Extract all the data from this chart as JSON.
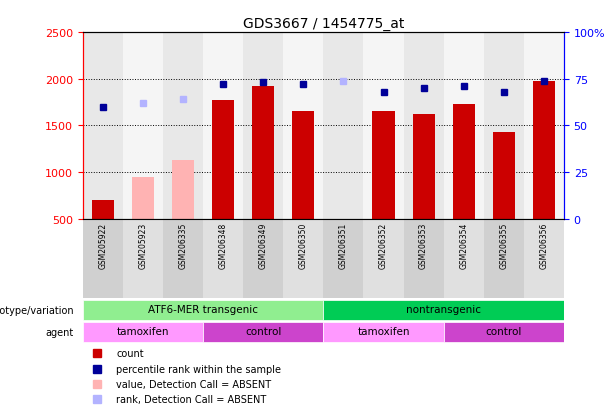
{
  "title": "GDS3667 / 1454775_at",
  "samples": [
    "GSM205922",
    "GSM205923",
    "GSM206335",
    "GSM206348",
    "GSM206349",
    "GSM206350",
    "GSM206351",
    "GSM206352",
    "GSM206353",
    "GSM206354",
    "GSM206355",
    "GSM206356"
  ],
  "count_values": [
    700,
    null,
    null,
    1775,
    1925,
    1650,
    null,
    1650,
    1625,
    1725,
    1425,
    1975
  ],
  "count_absent": [
    null,
    950,
    1125,
    null,
    null,
    null,
    null,
    null,
    null,
    null,
    null,
    null
  ],
  "rank_values": [
    60,
    null,
    null,
    72,
    73,
    72,
    null,
    68,
    70,
    71,
    68,
    74
  ],
  "rank_absent": [
    null,
    62,
    64,
    null,
    null,
    null,
    74,
    null,
    null,
    null,
    null,
    null
  ],
  "ylim_left": [
    500,
    2500
  ],
  "ylim_right": [
    0,
    100
  ],
  "yticks_left": [
    500,
    1000,
    1500,
    2000,
    2500
  ],
  "yticks_right": [
    0,
    25,
    50,
    75,
    100
  ],
  "ytick_labels_right": [
    "0",
    "25",
    "50",
    "75",
    "100%"
  ],
  "bar_color": "#cc0000",
  "bar_absent_color": "#ffb3b3",
  "rank_color": "#000099",
  "rank_absent_color": "#b3b3ff",
  "bg_color": "#d0d0d0",
  "plot_bg": "#ffffff",
  "genotype_groups": [
    {
      "label": "ATF6-MER transgenic",
      "start": 0,
      "end": 6,
      "color": "#90ee90"
    },
    {
      "label": "nontransgenic",
      "start": 6,
      "end": 12,
      "color": "#00cc55"
    }
  ],
  "agent_groups": [
    {
      "label": "tamoxifen",
      "start": 0,
      "end": 3,
      "color": "#ff99ff"
    },
    {
      "label": "control",
      "start": 3,
      "end": 6,
      "color": "#cc44cc"
    },
    {
      "label": "tamoxifen",
      "start": 6,
      "end": 9,
      "color": "#ff99ff"
    },
    {
      "label": "control",
      "start": 9,
      "end": 12,
      "color": "#cc44cc"
    }
  ],
  "legend_items": [
    {
      "label": "count",
      "color": "#cc0000"
    },
    {
      "label": "percentile rank within the sample",
      "color": "#000099"
    },
    {
      "label": "value, Detection Call = ABSENT",
      "color": "#ffb3b3"
    },
    {
      "label": "rank, Detection Call = ABSENT",
      "color": "#b3b3ff"
    }
  ],
  "genotype_label": "genotype/variation",
  "agent_label": "agent"
}
